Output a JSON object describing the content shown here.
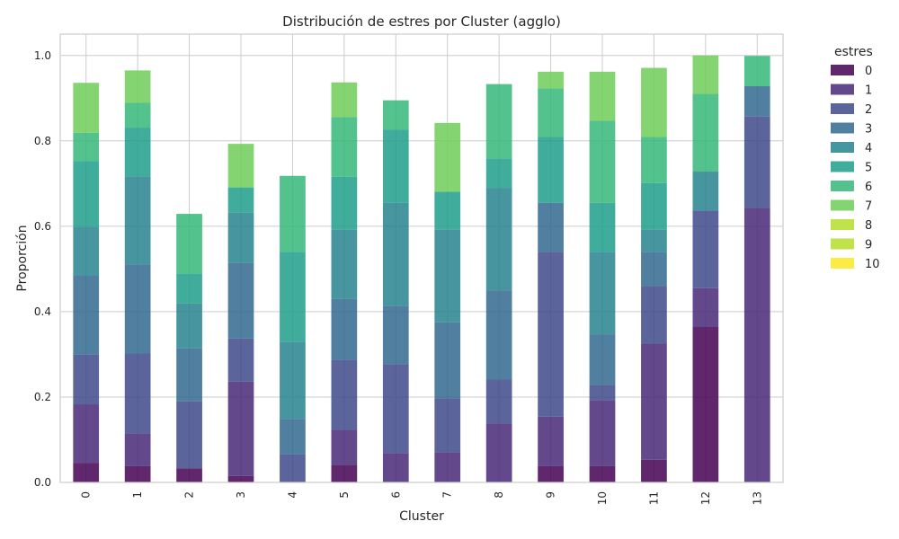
{
  "chart_data": {
    "type": "bar",
    "stacked": true,
    "normalized": true,
    "title": "Distribución de estres por Cluster (agglo)",
    "xlabel": "Cluster",
    "ylabel": "Proporción",
    "ylim": [
      0,
      1.05
    ],
    "yticks": [
      "0.0",
      "0.2",
      "0.4",
      "0.6",
      "0.8",
      "1.0"
    ],
    "ytick_values": [
      0,
      0.2,
      0.4,
      0.6,
      0.8,
      1.0
    ],
    "categories": [
      "0",
      "1",
      "2",
      "3",
      "4",
      "5",
      "6",
      "7",
      "8",
      "9",
      "10",
      "11",
      "12",
      "13"
    ],
    "legend": {
      "title": "estres",
      "placement": "outside-top-right"
    },
    "grid": true,
    "series": [
      {
        "name": "0",
        "color": "#440154",
        "values": [
          0.046,
          0.038,
          0.033,
          0.015,
          0.0,
          0.04,
          0.0,
          0.0,
          0.0,
          0.038,
          0.038,
          0.053,
          0.364,
          0.0
        ]
      },
      {
        "name": "1",
        "color": "#482878",
        "values": [
          0.137,
          0.077,
          0.0,
          0.221,
          0.0,
          0.083,
          0.069,
          0.071,
          0.138,
          0.116,
          0.155,
          0.272,
          0.091,
          0.643
        ]
      },
      {
        "name": "2",
        "color": "#3e4989",
        "values": [
          0.116,
          0.187,
          0.157,
          0.101,
          0.066,
          0.164,
          0.208,
          0.126,
          0.103,
          0.386,
          0.036,
          0.135,
          0.182,
          0.214
        ]
      },
      {
        "name": "3",
        "color": "#31688e",
        "values": [
          0.185,
          0.209,
          0.124,
          0.178,
          0.083,
          0.143,
          0.137,
          0.178,
          0.209,
          0.115,
          0.118,
          0.08,
          0.0,
          0.071
        ]
      },
      {
        "name": "4",
        "color": "#26828e",
        "values": [
          0.115,
          0.206,
          0.105,
          0.117,
          0.18,
          0.162,
          0.241,
          0.217,
          0.24,
          0.0,
          0.193,
          0.052,
          0.091,
          0.0
        ]
      },
      {
        "name": "5",
        "color": "#1f9e89",
        "values": [
          0.154,
          0.114,
          0.07,
          0.059,
          0.211,
          0.124,
          0.171,
          0.089,
          0.069,
          0.154,
          0.115,
          0.109,
          0.0,
          0.0
        ]
      },
      {
        "name": "6",
        "color": "#35b779",
        "values": [
          0.066,
          0.058,
          0.14,
          0.0,
          0.178,
          0.14,
          0.069,
          0.0,
          0.174,
          0.114,
          0.192,
          0.108,
          0.182,
          0.071
        ]
      },
      {
        "name": "7",
        "color": "#6ece58",
        "values": [
          0.117,
          0.076,
          0.0,
          0.102,
          0.0,
          0.081,
          0.0,
          0.161,
          0.0,
          0.039,
          0.115,
          0.162,
          0.09,
          0.0
        ]
      },
      {
        "name": "8",
        "color": "#b5de2b",
        "values": [
          0.0,
          0.0,
          0.0,
          0.0,
          0.0,
          0.0,
          0.0,
          0.0,
          0.0,
          0.0,
          0.0,
          0.0,
          0.0,
          0.0
        ]
      },
      {
        "name": "9",
        "color": "#b5de2b",
        "values": [
          0.0,
          0.0,
          0.0,
          0.0,
          0.0,
          0.0,
          0.0,
          0.0,
          0.0,
          0.0,
          0.0,
          0.0,
          0.0,
          0.0
        ]
      },
      {
        "name": "10",
        "color": "#fde725",
        "values": [
          0.0,
          0.0,
          0.0,
          0.0,
          0.0,
          0.0,
          0.0,
          0.0,
          0.0,
          0.0,
          0.0,
          0.0,
          0.0,
          0.0
        ]
      }
    ]
  }
}
